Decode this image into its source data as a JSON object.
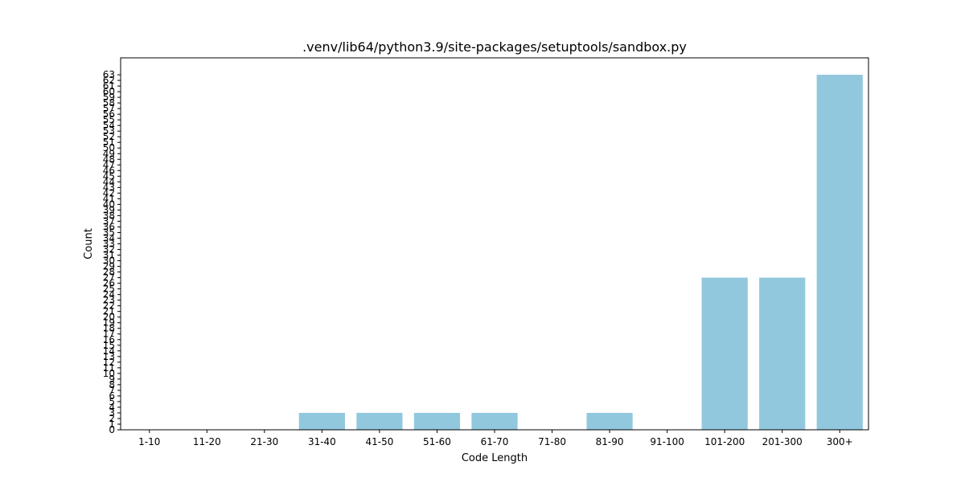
{
  "chart_data": {
    "type": "bar",
    "title": ".venv/lib64/python3.9/site-packages/setuptools/sandbox.py",
    "xlabel": "Code Length",
    "ylabel": "Count",
    "categories": [
      "1-10",
      "11-20",
      "21-30",
      "31-40",
      "41-50",
      "51-60",
      "61-70",
      "71-80",
      "81-90",
      "91-100",
      "101-200",
      "201-300",
      "300+"
    ],
    "values": [
      0,
      0,
      0,
      3,
      3,
      3,
      3,
      0,
      3,
      0,
      27,
      27,
      63
    ],
    "ylim": [
      0,
      66
    ],
    "yticks": [
      0,
      1,
      2,
      3,
      4,
      5,
      6,
      7,
      8,
      9,
      10,
      11,
      12,
      13,
      14,
      15,
      16,
      17,
      18,
      19,
      20,
      21,
      22,
      23,
      24,
      25,
      26,
      27,
      28,
      29,
      30,
      31,
      32,
      33,
      34,
      35,
      36,
      37,
      38,
      39,
      40,
      41,
      42,
      43,
      44,
      45,
      46,
      47,
      48,
      49,
      50,
      51,
      52,
      53,
      54,
      55,
      56,
      57,
      58,
      59,
      60,
      61,
      62,
      63
    ],
    "bar_color": "#92c8de",
    "grid": false,
    "legend": "none"
  }
}
